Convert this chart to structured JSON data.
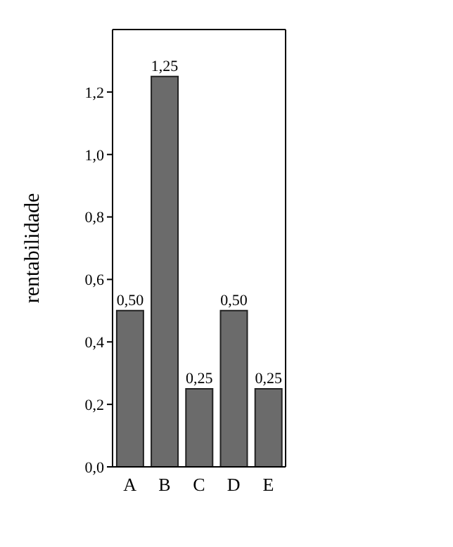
{
  "chart_data": {
    "type": "bar",
    "ylabel": "rentabilidade",
    "categories": [
      "A",
      "B",
      "C",
      "D",
      "E"
    ],
    "values": [
      0.5,
      1.25,
      0.25,
      0.5,
      0.25
    ],
    "value_labels": [
      "0,50",
      "1,25",
      "0,25",
      "0,50",
      "0,25"
    ],
    "color": "#6b6b6b",
    "ylim": [
      0,
      1.4
    ],
    "yticks": [
      {
        "value": 0,
        "label": "0,0"
      },
      {
        "value": 0.2,
        "label": "0,2"
      },
      {
        "value": 0.4,
        "label": "0,4"
      },
      {
        "value": 0.6,
        "label": "0,6"
      },
      {
        "value": 0.8,
        "label": "0,8"
      },
      {
        "value": 1,
        "label": "1,0"
      },
      {
        "value": 1.2,
        "label": "1,2"
      }
    ],
    "grid": false,
    "legend": false
  }
}
